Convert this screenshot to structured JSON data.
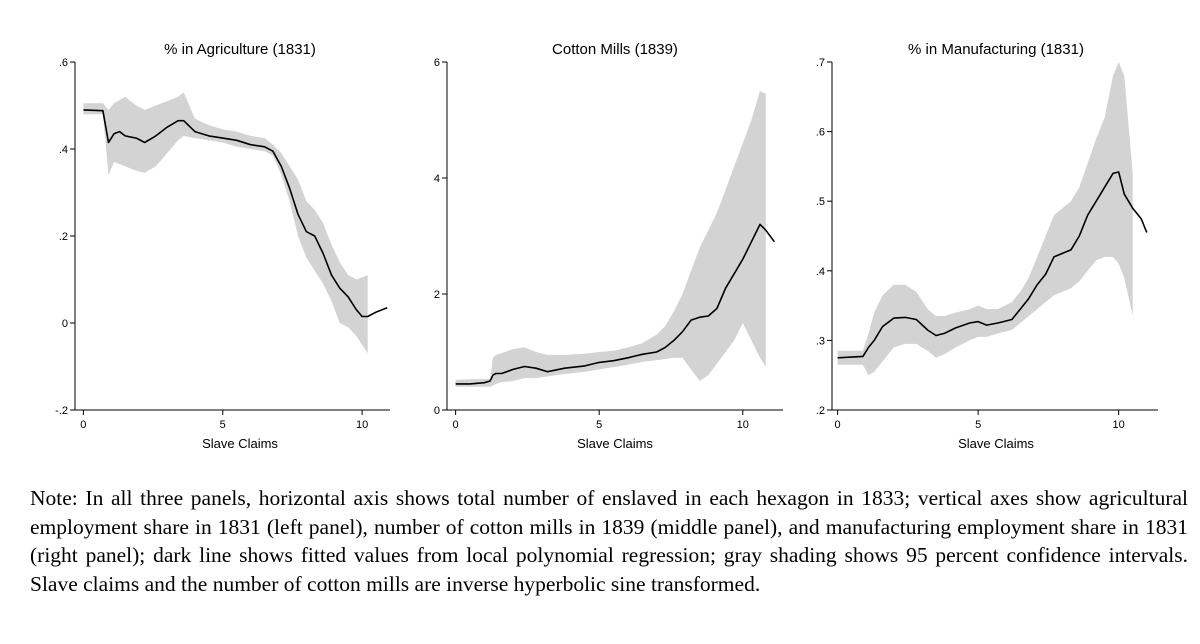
{
  "chart_data": [
    {
      "type": "line",
      "title": "% in Agriculture (1831)",
      "xlabel": "Slave Claims",
      "ylabel": "",
      "xlim": [
        -0.3,
        11
      ],
      "ylim": [
        -0.2,
        0.6
      ],
      "xticks": [
        0,
        5,
        10
      ],
      "xtick_labels": [
        "0",
        "5",
        "10"
      ],
      "yticks": [
        -0.2,
        0,
        0.2,
        0.4,
        0.6
      ],
      "ytick_labels": [
        "-.2",
        "0",
        ".2",
        ".4",
        ".6"
      ],
      "series": [
        {
          "name": "Fitted values",
          "x": [
            0,
            0.7,
            0.9,
            1.1,
            1.3,
            1.5,
            1.9,
            2.2,
            2.6,
            3.0,
            3.4,
            3.6,
            4.0,
            4.5,
            5.0,
            5.5,
            6.0,
            6.5,
            6.8,
            7.1,
            7.4,
            7.7,
            8.0,
            8.3,
            8.6,
            8.9,
            9.2,
            9.5,
            9.8,
            10.0,
            10.2,
            10.5,
            10.9
          ],
          "y": [
            0.49,
            0.488,
            0.415,
            0.435,
            0.44,
            0.43,
            0.425,
            0.415,
            0.43,
            0.45,
            0.465,
            0.465,
            0.44,
            0.43,
            0.425,
            0.42,
            0.41,
            0.405,
            0.395,
            0.36,
            0.31,
            0.25,
            0.21,
            0.2,
            0.16,
            0.11,
            0.08,
            0.06,
            0.03,
            0.015,
            0.015,
            0.025,
            0.035
          ]
        }
      ],
      "ci": {
        "name": "95% CI",
        "x": [
          0,
          0.7,
          0.9,
          1.1,
          1.5,
          1.9,
          2.2,
          2.6,
          3.0,
          3.4,
          3.6,
          4.0,
          4.5,
          5.0,
          5.5,
          6.0,
          6.5,
          6.8,
          7.1,
          7.4,
          7.7,
          8.0,
          8.3,
          8.6,
          8.9,
          9.2,
          9.5,
          9.8,
          10.0,
          10.2
        ],
        "lower": [
          0.48,
          0.48,
          0.34,
          0.37,
          0.36,
          0.35,
          0.345,
          0.36,
          0.39,
          0.42,
          0.43,
          0.425,
          0.42,
          0.415,
          0.405,
          0.4,
          0.395,
          0.385,
          0.34,
          0.28,
          0.2,
          0.15,
          0.12,
          0.09,
          0.05,
          0.0,
          -0.01,
          -0.03,
          -0.05,
          -0.07
        ],
        "upper": [
          0.505,
          0.505,
          0.49,
          0.505,
          0.52,
          0.5,
          0.49,
          0.5,
          0.51,
          0.52,
          0.53,
          0.47,
          0.455,
          0.445,
          0.44,
          0.43,
          0.425,
          0.41,
          0.39,
          0.36,
          0.33,
          0.28,
          0.26,
          0.23,
          0.18,
          0.14,
          0.11,
          0.1,
          0.105,
          0.11
        ]
      }
    },
    {
      "type": "line",
      "title": "Cotton Mills (1839)",
      "xlabel": "Slave Claims",
      "ylabel": "",
      "xlim": [
        -0.3,
        11.4
      ],
      "ylim": [
        0,
        6
      ],
      "xticks": [
        0,
        5,
        10
      ],
      "xtick_labels": [
        "0",
        "5",
        "10"
      ],
      "yticks": [
        0,
        2,
        4,
        6
      ],
      "ytick_labels": [
        "0",
        "2",
        "4",
        "6"
      ],
      "series": [
        {
          "name": "Fitted values",
          "x": [
            0,
            0.5,
            1.0,
            1.2,
            1.3,
            1.4,
            1.6,
            2.0,
            2.4,
            2.8,
            3.2,
            3.8,
            4.5,
            5.0,
            5.5,
            6.0,
            6.5,
            7.0,
            7.3,
            7.6,
            7.9,
            8.2,
            8.5,
            8.8,
            9.1,
            9.4,
            9.7,
            10.0,
            10.3,
            10.6,
            10.8,
            11.1
          ],
          "y": [
            0.45,
            0.45,
            0.47,
            0.5,
            0.6,
            0.63,
            0.63,
            0.7,
            0.75,
            0.72,
            0.66,
            0.72,
            0.76,
            0.82,
            0.85,
            0.9,
            0.96,
            1.0,
            1.08,
            1.2,
            1.35,
            1.55,
            1.6,
            1.62,
            1.75,
            2.1,
            2.35,
            2.6,
            2.9,
            3.2,
            3.1,
            2.9
          ]
        }
      ],
      "ci": {
        "name": "95% CI",
        "x": [
          0,
          1.2,
          1.3,
          1.4,
          1.6,
          2.0,
          2.4,
          2.8,
          3.2,
          3.8,
          4.5,
          5.0,
          5.5,
          6.0,
          6.5,
          7.0,
          7.3,
          7.6,
          7.9,
          8.2,
          8.5,
          8.8,
          9.1,
          9.4,
          9.7,
          10.0,
          10.3,
          10.6,
          10.8
        ],
        "lower": [
          0.4,
          0.4,
          0.42,
          0.45,
          0.48,
          0.5,
          0.55,
          0.55,
          0.58,
          0.62,
          0.66,
          0.7,
          0.74,
          0.78,
          0.83,
          0.86,
          0.88,
          0.9,
          0.9,
          0.7,
          0.5,
          0.6,
          0.8,
          1.0,
          1.2,
          1.5,
          1.2,
          0.9,
          0.75
        ],
        "upper": [
          0.52,
          0.54,
          0.9,
          0.95,
          0.98,
          1.05,
          1.08,
          1.0,
          0.95,
          0.95,
          0.97,
          1.0,
          1.02,
          1.08,
          1.15,
          1.3,
          1.45,
          1.7,
          2.0,
          2.4,
          2.8,
          3.1,
          3.4,
          3.8,
          4.2,
          4.6,
          5.0,
          5.5,
          5.45
        ]
      }
    },
    {
      "type": "line",
      "title": "% in Manufacturing (1831)",
      "xlabel": "Slave Claims",
      "ylabel": "",
      "xlim": [
        -0.2,
        11.4
      ],
      "ylim": [
        0.2,
        0.7
      ],
      "xticks": [
        0,
        5,
        10
      ],
      "xtick_labels": [
        "0",
        "5",
        "10"
      ],
      "yticks": [
        0.2,
        0.3,
        0.4,
        0.5,
        0.6,
        0.7
      ],
      "ytick_labels": [
        ".2",
        ".3",
        ".4",
        ".5",
        ".6",
        ".7"
      ],
      "series": [
        {
          "name": "Fitted values",
          "x": [
            0,
            0.9,
            1.1,
            1.3,
            1.6,
            2.0,
            2.4,
            2.8,
            3.2,
            3.5,
            3.8,
            4.2,
            4.7,
            5.0,
            5.3,
            5.7,
            6.2,
            6.5,
            6.8,
            7.1,
            7.4,
            7.7,
            8.0,
            8.3,
            8.6,
            8.9,
            9.2,
            9.5,
            9.8,
            10.0,
            10.2,
            10.5,
            10.8,
            11.0
          ],
          "y": [
            0.275,
            0.277,
            0.29,
            0.3,
            0.32,
            0.332,
            0.333,
            0.33,
            0.315,
            0.307,
            0.31,
            0.318,
            0.325,
            0.327,
            0.322,
            0.325,
            0.33,
            0.345,
            0.36,
            0.38,
            0.395,
            0.42,
            0.425,
            0.43,
            0.45,
            0.48,
            0.5,
            0.52,
            0.54,
            0.542,
            0.51,
            0.49,
            0.475,
            0.455
          ]
        }
      ],
      "ci": {
        "name": "95% CI",
        "x": [
          0,
          0.9,
          1.1,
          1.3,
          1.6,
          2.0,
          2.4,
          2.8,
          3.2,
          3.5,
          3.8,
          4.2,
          4.7,
          5.0,
          5.3,
          5.7,
          6.2,
          6.5,
          6.8,
          7.1,
          7.4,
          7.7,
          8.0,
          8.3,
          8.6,
          8.9,
          9.2,
          9.5,
          9.8,
          10.0,
          10.2,
          10.5
        ],
        "lower": [
          0.265,
          0.265,
          0.25,
          0.255,
          0.27,
          0.29,
          0.295,
          0.295,
          0.285,
          0.275,
          0.28,
          0.29,
          0.3,
          0.305,
          0.305,
          0.31,
          0.315,
          0.325,
          0.335,
          0.345,
          0.355,
          0.365,
          0.37,
          0.375,
          0.385,
          0.4,
          0.415,
          0.42,
          0.42,
          0.41,
          0.39,
          0.335
        ],
        "upper": [
          0.285,
          0.285,
          0.31,
          0.34,
          0.365,
          0.38,
          0.38,
          0.37,
          0.345,
          0.335,
          0.335,
          0.34,
          0.345,
          0.35,
          0.345,
          0.345,
          0.355,
          0.37,
          0.39,
          0.42,
          0.45,
          0.48,
          0.49,
          0.5,
          0.52,
          0.555,
          0.59,
          0.62,
          0.68,
          0.7,
          0.68,
          0.54
        ]
      }
    }
  ],
  "note": "Note: In all three panels, horizontal axis shows total number of enslaved in each hexagon in 1833; vertical axes show agricultural employment share in 1831 (left panel), number of cotton mills in 1839 (middle panel), and manufacturing employment share in 1831 (right panel); dark line shows fitted values from local polynomial regression; gray shading shows 95 percent confidence intervals. Slave claims and the number of cotton mills are inverse hyperbolic sine transformed.",
  "colors": {
    "line": "#000000",
    "ci_fill": "#d3d3d3",
    "axis": "#000000"
  }
}
